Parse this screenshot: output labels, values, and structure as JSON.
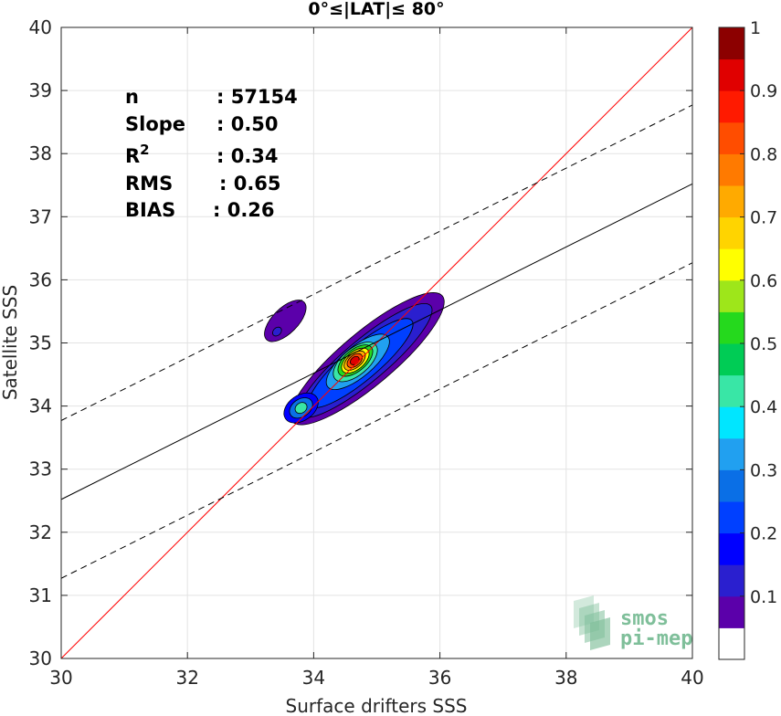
{
  "chart_data": {
    "type": "contour",
    "title": "0°≤|LAT|≤ 80°",
    "xlabel": "Surface drifters SSS",
    "ylabel": "Satellite SSS",
    "xlim": [
      30,
      40
    ],
    "ylim": [
      30,
      40
    ],
    "xticks": [
      "30",
      "32",
      "34",
      "36",
      "38",
      "40"
    ],
    "yticks": [
      "30",
      "31",
      "32",
      "33",
      "34",
      "35",
      "36",
      "37",
      "38",
      "39",
      "40"
    ],
    "grid": true,
    "stats": [
      {
        "label": "n",
        "value": ": 57154"
      },
      {
        "label": "Slope",
        "value": ": 0.50"
      },
      {
        "label": "R",
        "sup": "2",
        "value": ": 0.34"
      },
      {
        "label": "RMS",
        "value": ": 0.65"
      },
      {
        "label": "BIAS",
        "value": ": 0.26"
      }
    ],
    "lines": [
      {
        "name": "identity",
        "color": "#ff0000",
        "style": "solid",
        "points": [
          [
            30,
            30
          ],
          [
            40,
            40
          ]
        ]
      },
      {
        "name": "regression",
        "color": "#000000",
        "style": "solid",
        "points": [
          [
            30,
            32.52
          ],
          [
            40,
            37.52
          ]
        ]
      },
      {
        "name": "upper",
        "color": "#000000",
        "style": "dashed",
        "points": [
          [
            30,
            33.77
          ],
          [
            40,
            38.77
          ]
        ]
      },
      {
        "name": "lower",
        "color": "#000000",
        "style": "dashed",
        "points": [
          [
            30,
            31.27
          ],
          [
            40,
            36.27
          ]
        ]
      }
    ],
    "density_peaks": [
      {
        "x": 34.65,
        "y": 34.72,
        "level": 1.0
      },
      {
        "x": 33.8,
        "y": 33.95,
        "level": 0.5
      },
      {
        "x": 33.42,
        "y": 35.18,
        "level": 0.1
      }
    ],
    "colorbar": {
      "ticks": [
        "0.1",
        "0.2",
        "0.3",
        "0.4",
        "0.5",
        "0.6",
        "0.7",
        "0.8",
        "0.9",
        "1"
      ],
      "colors": [
        "#ffffff",
        "#5b00aa",
        "#2a1fcf",
        "#0000ff",
        "#0040ff",
        "#0a6fe6",
        "#21a0f0",
        "#00e6ff",
        "#39e6a6",
        "#00cc55",
        "#25d91d",
        "#9ee61a",
        "#ffff00",
        "#ffd400",
        "#ffaa00",
        "#ff7a00",
        "#ff4d00",
        "#ff1a00",
        "#e00000",
        "#8c0000"
      ]
    },
    "watermark": [
      "smos",
      "pi-mep"
    ]
  }
}
